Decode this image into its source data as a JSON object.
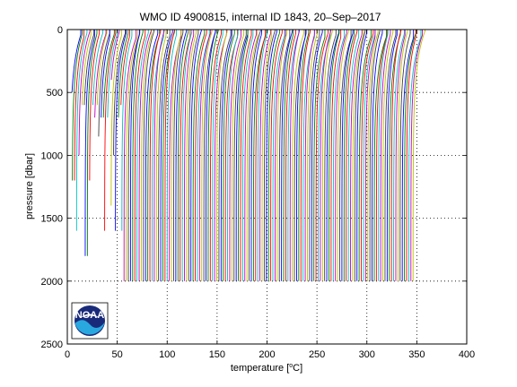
{
  "chart_data": {
    "type": "line",
    "title": "WMO ID 4900815, internal ID 1843, 20–Sep–2017",
    "xlabel_prefix": "temperature [",
    "xlabel_sup": "o",
    "xlabel_suffix": "C]",
    "ylabel": "pressure [dbar]",
    "xlim": [
      0,
      400
    ],
    "ylim": [
      0,
      2500
    ],
    "y_reversed": true,
    "xticks": [
      0,
      50,
      100,
      150,
      200,
      250,
      300,
      350,
      400
    ],
    "yticks": [
      0,
      500,
      1000,
      1500,
      2000,
      2500
    ],
    "grid": "dotted",
    "profiles": {
      "count": 160,
      "first_offset": 0,
      "offset_step": 2.16,
      "deep_temperature": 2.8,
      "surface_temperature_min": 12,
      "surface_temperature_max": 15,
      "max_pressure": 2000,
      "colors": [
        "#0000ff",
        "#008000",
        "#ff0000",
        "#00bfbf",
        "#bf00bf",
        "#bfbf00",
        "#3f3f3f"
      ]
    }
  },
  "logo": {
    "text": "NOAA",
    "colors": {
      "navy": "#1a2a7a",
      "sky": "#29a8e0",
      "white": "#ffffff"
    }
  }
}
